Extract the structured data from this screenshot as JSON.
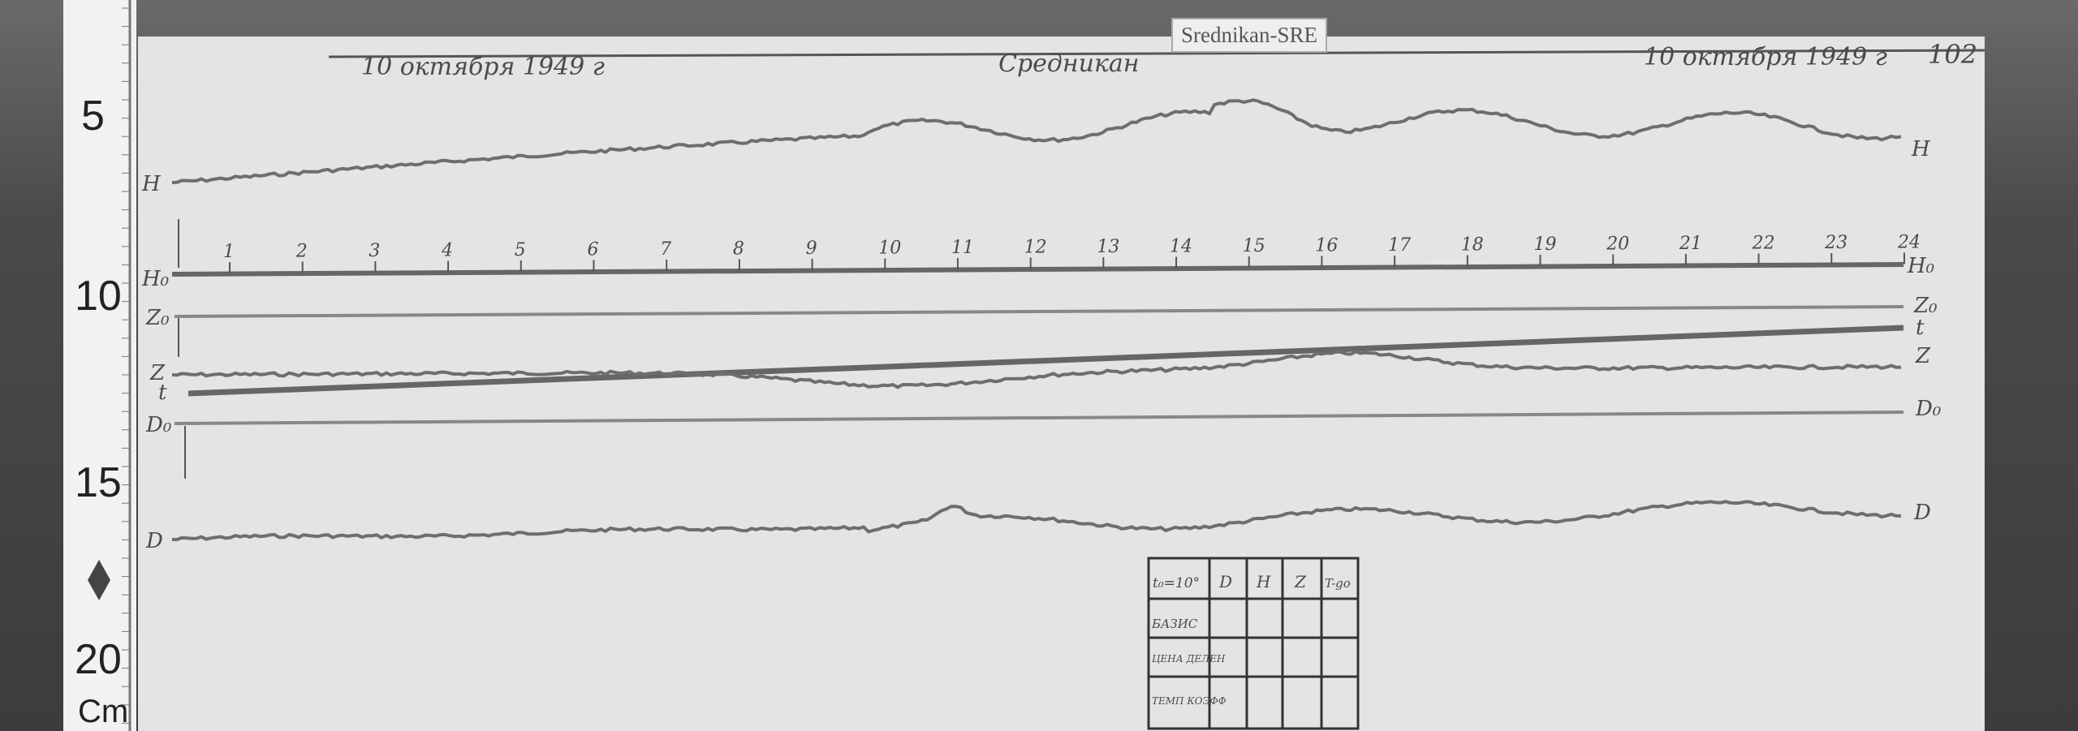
{
  "station_label": "Srednikan-SRE",
  "header": {
    "date_left": "10 октября 1949 г",
    "station_handwritten": "Средникан",
    "date_right": "10 октября 1949 г",
    "sheet_number": "102"
  },
  "ruler": {
    "marks": [
      "5",
      "10",
      "15",
      "20"
    ],
    "unit": "Cm"
  },
  "hours": [
    "1",
    "2",
    "3",
    "4",
    "5",
    "6",
    "7",
    "8",
    "9",
    "10",
    "11",
    "12",
    "13",
    "14",
    "15",
    "16",
    "17",
    "18",
    "19",
    "20",
    "21",
    "22",
    "23",
    "24"
  ],
  "trace_labels": {
    "H": "H",
    "H0": "H₀",
    "Z0": "Z₀",
    "Z": "Z",
    "t": "t",
    "D0": "D₀",
    "D": "D"
  },
  "table": {
    "headers": [
      "t₀=10°",
      "D",
      "H",
      "Z",
      "T-go"
    ],
    "rows": [
      "БАЗИС",
      "ЦЕНА ДЕЛЕН",
      "ТЕМП КОЭФФ"
    ]
  },
  "colors": {
    "paper": "#e6e6e6",
    "trace": "#6e6e6e",
    "background": "#3c3c3c"
  }
}
